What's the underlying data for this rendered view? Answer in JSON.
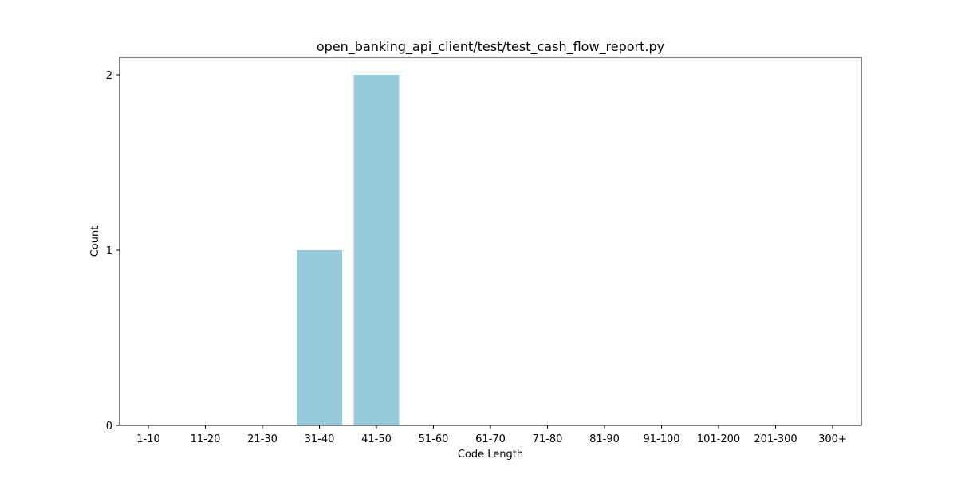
{
  "chart_data": {
    "type": "bar",
    "title": "open_banking_api_client/test/test_cash_flow_report.py",
    "xlabel": "Code Length",
    "ylabel": "Count",
    "categories": [
      "1-10",
      "11-20",
      "21-30",
      "31-40",
      "41-50",
      "51-60",
      "61-70",
      "71-80",
      "81-90",
      "91-100",
      "101-200",
      "201-300",
      "300+"
    ],
    "values": [
      0,
      0,
      0,
      1,
      2,
      0,
      0,
      0,
      0,
      0,
      0,
      0,
      0
    ],
    "yticks": [
      0,
      1,
      2
    ],
    "ylim": [
      0,
      2.1
    ],
    "grid": false,
    "bar_color": "#96c9dc"
  }
}
